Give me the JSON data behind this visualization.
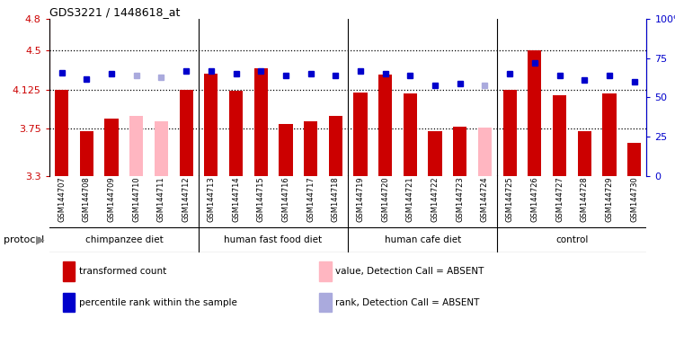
{
  "title": "GDS3221 / 1448618_at",
  "samples": [
    "GSM144707",
    "GSM144708",
    "GSM144709",
    "GSM144710",
    "GSM144711",
    "GSM144712",
    "GSM144713",
    "GSM144714",
    "GSM144715",
    "GSM144716",
    "GSM144717",
    "GSM144718",
    "GSM144719",
    "GSM144720",
    "GSM144721",
    "GSM144722",
    "GSM144723",
    "GSM144724",
    "GSM144725",
    "GSM144726",
    "GSM144727",
    "GSM144728",
    "GSM144729",
    "GSM144730"
  ],
  "bar_values": [
    4.12,
    3.73,
    3.85,
    3.87,
    3.82,
    4.12,
    4.28,
    4.11,
    4.33,
    3.8,
    3.82,
    3.87,
    4.1,
    4.27,
    4.09,
    3.73,
    3.77,
    3.76,
    4.12,
    4.5,
    4.07,
    3.73,
    4.09,
    3.62
  ],
  "absent_bars": [
    false,
    false,
    false,
    true,
    true,
    false,
    false,
    false,
    false,
    false,
    false,
    false,
    false,
    false,
    false,
    false,
    false,
    true,
    false,
    false,
    false,
    false,
    false,
    false
  ],
  "dot_values": [
    66,
    62,
    65,
    64,
    63,
    67,
    67,
    65,
    67,
    64,
    65,
    64,
    67,
    65,
    64,
    58,
    59,
    58,
    65,
    72,
    64,
    61,
    64,
    60
  ],
  "absent_dots": [
    false,
    false,
    false,
    true,
    true,
    false,
    false,
    false,
    false,
    false,
    false,
    false,
    false,
    false,
    false,
    false,
    false,
    true,
    false,
    false,
    false,
    false,
    false,
    false
  ],
  "groups": [
    {
      "label": "chimpanzee diet",
      "start": 0,
      "end": 5
    },
    {
      "label": "human fast food diet",
      "start": 6,
      "end": 11
    },
    {
      "label": "human cafe diet",
      "start": 12,
      "end": 17
    },
    {
      "label": "control",
      "start": 18,
      "end": 23
    }
  ],
  "group_dividers": [
    5.5,
    11.5,
    17.5
  ],
  "ylim_left": [
    3.3,
    4.8
  ],
  "ylim_right": [
    0,
    100
  ],
  "yticks_left": [
    3.3,
    3.75,
    4.125,
    4.5,
    4.8
  ],
  "ytick_labels_left": [
    "3.3",
    "3.75",
    "4.125",
    "4.5",
    "4.8"
  ],
  "yticks_right": [
    0,
    25,
    50,
    75,
    100
  ],
  "ytick_labels_right": [
    "0",
    "25",
    "50",
    "75",
    "100%"
  ],
  "hlines": [
    3.75,
    4.125,
    4.5
  ],
  "bar_color_normal": "#CC0000",
  "bar_color_absent": "#FFB6C1",
  "dot_color_normal": "#0000CC",
  "dot_color_absent": "#AAAADD",
  "bg_xtick": "#C8C8C8",
  "bg_group": "#66EE66",
  "protocol_label": "protocol",
  "legend_items": [
    {
      "color": "#CC0000",
      "label": "transformed count"
    },
    {
      "color": "#0000CC",
      "label": "percentile rank within the sample"
    },
    {
      "color": "#FFB6C1",
      "label": "value, Detection Call = ABSENT"
    },
    {
      "color": "#AAAADD",
      "label": "rank, Detection Call = ABSENT"
    }
  ]
}
